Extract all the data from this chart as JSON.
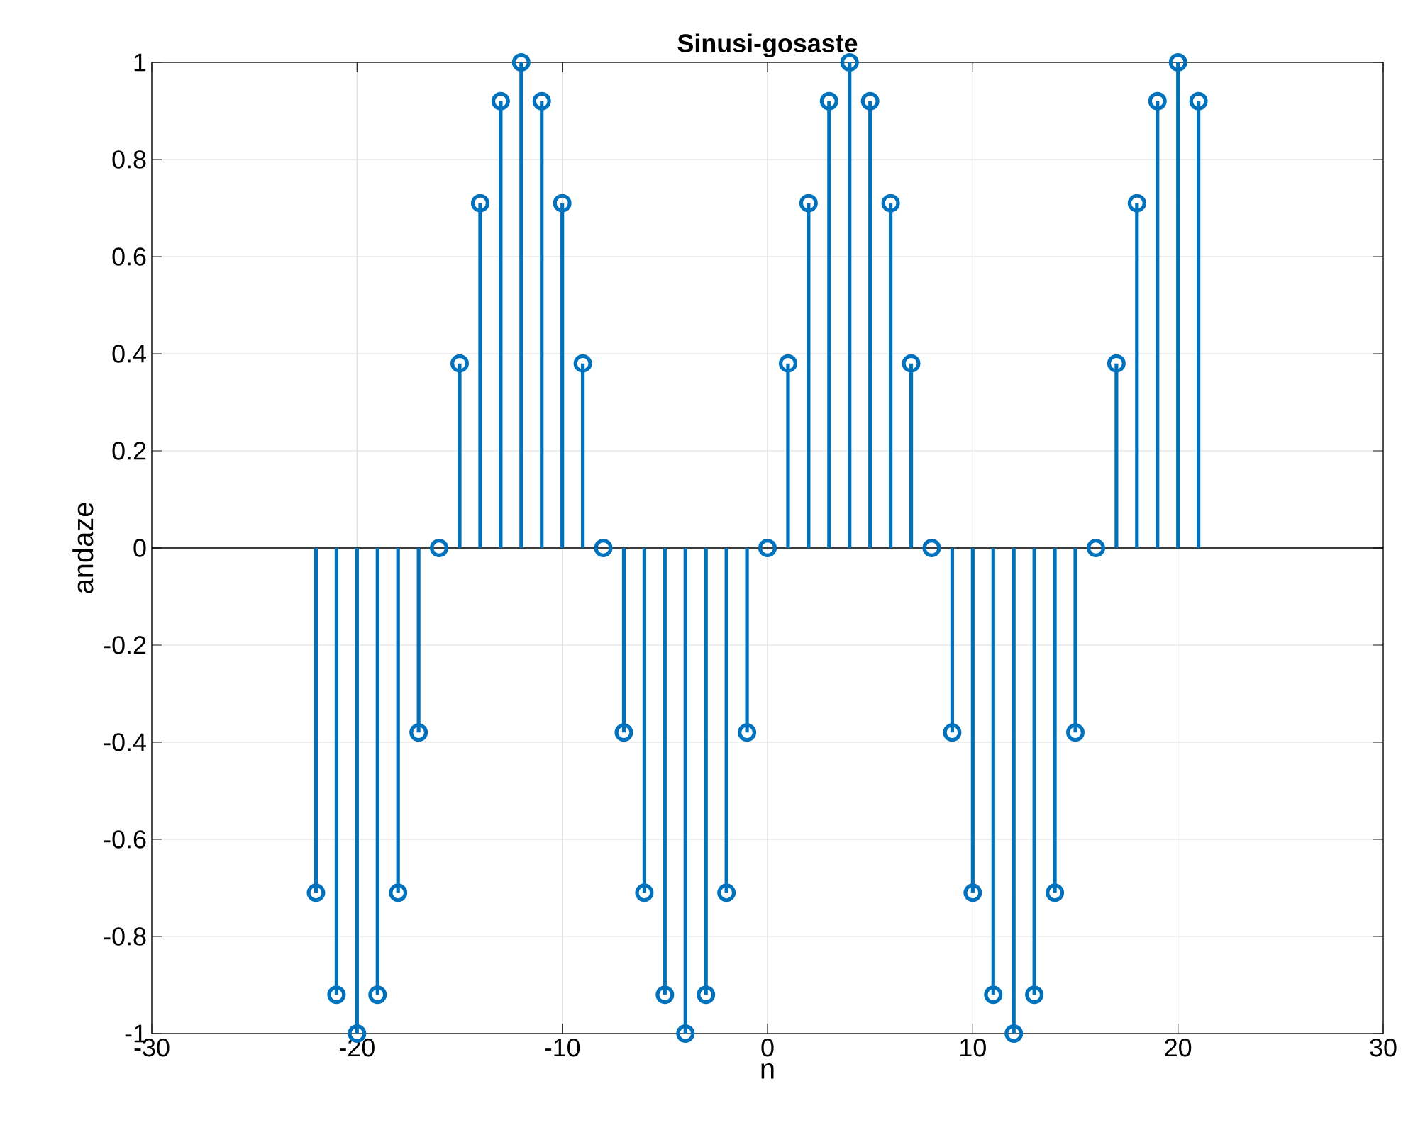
{
  "chart_data": {
    "type": "lollipop",
    "title": "Sinusi-gosaste",
    "xlabel": "n",
    "ylabel": "andaze",
    "xlim": [
      -30,
      30
    ],
    "xticks": [
      -30,
      -20,
      -10,
      0,
      10,
      20,
      30
    ],
    "ylim": [
      -1,
      1
    ],
    "yticks": [
      -1,
      -0.8,
      -0.6,
      -0.4,
      -0.2,
      0,
      0.2,
      0.4,
      0.6,
      0.8,
      1
    ],
    "grid": true,
    "marker": "circle",
    "series": [
      {
        "color": "#0072bd",
        "x": [
          -22,
          -21,
          -20,
          -19,
          -18,
          -17,
          -16,
          -15,
          -14,
          -13,
          -12,
          -11,
          -10,
          -9,
          -8,
          -7,
          -6,
          -5,
          -4,
          -3,
          -2,
          -1,
          0,
          1,
          2,
          3,
          4,
          5,
          6,
          7,
          8,
          9,
          10,
          11,
          12,
          13,
          14,
          15,
          16,
          17,
          18,
          19,
          20,
          21
        ],
        "values": [
          -0.71,
          -0.92,
          -1,
          -0.92,
          -0.71,
          -0.38,
          0,
          0.38,
          0.71,
          0.92,
          1,
          0.92,
          0.71,
          0.38,
          0,
          -0.38,
          -0.71,
          -0.92,
          -1,
          -0.92,
          -0.71,
          -0.38,
          0,
          0.38,
          0.71,
          0.92,
          1,
          0.92,
          0.71,
          0.38,
          0,
          -0.38,
          -0.71,
          -0.92,
          -1,
          -0.92,
          -0.71,
          -0.38,
          0,
          0.38,
          0.71,
          0.92,
          1,
          0.92
        ]
      }
    ]
  }
}
